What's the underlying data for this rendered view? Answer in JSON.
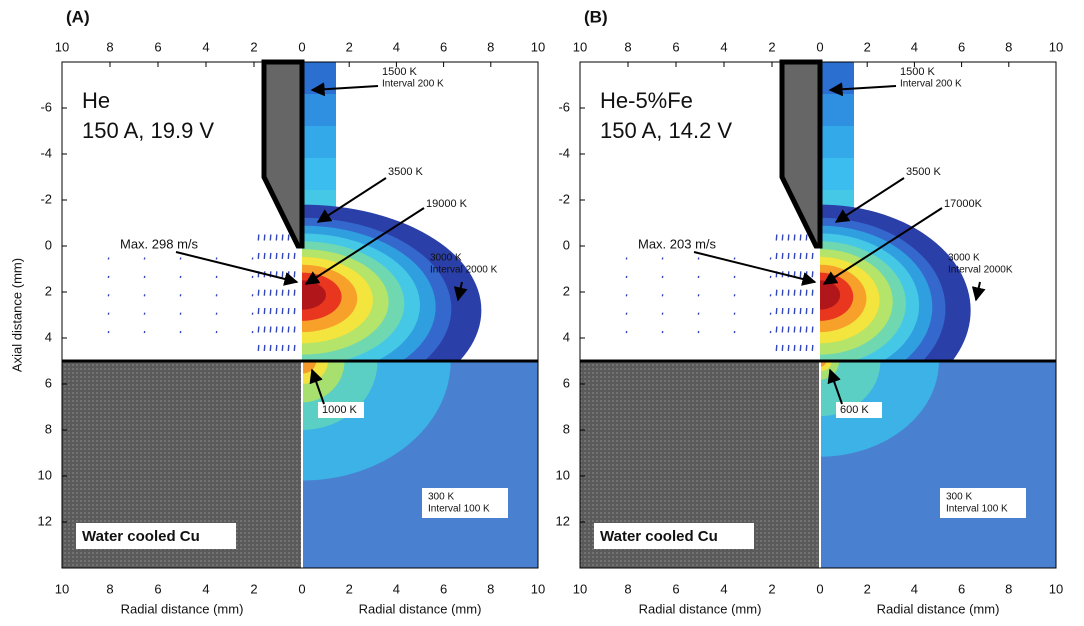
{
  "figure": {
    "panels": [
      {
        "label": "(A)",
        "gas": "He",
        "conditions": "150 A, 19.9 V",
        "max_velocity": "Max. 298 m/s",
        "temperature_labels": [
          "1500 K",
          "Interval 200 K",
          "3500 K",
          "19000 K",
          "3000 K",
          "Interval 2000 K",
          "1000 K",
          "300 K",
          "Interval 100 K"
        ],
        "substrate": "Water cooled Cu"
      },
      {
        "label": "(B)",
        "gas": "He-5%Fe",
        "conditions": "150 A, 14.2 V",
        "max_velocity": "Max. 203 m/s",
        "temperature_labels": [
          "1500 K",
          "Interval 200 K",
          "3500 K",
          "17000K",
          "3000 K",
          "Interval 2000K",
          "600 K",
          "300 K",
          "Interval 100 K"
        ],
        "substrate": "Water cooled Cu"
      }
    ],
    "x_axis_label": "Radial distance (mm)",
    "y_axis_label": "Axial distance (mm)",
    "axes": {
      "xlim": [
        0,
        10
      ],
      "ylim": [
        -8,
        14
      ],
      "xticks_left": [
        10,
        8,
        6,
        4,
        2,
        0
      ],
      "xticks_right": [
        0,
        2,
        4,
        6,
        8,
        10
      ],
      "yticks": [
        -6,
        -4,
        -2,
        0,
        2,
        4,
        6,
        8,
        10,
        12
      ]
    }
  }
}
